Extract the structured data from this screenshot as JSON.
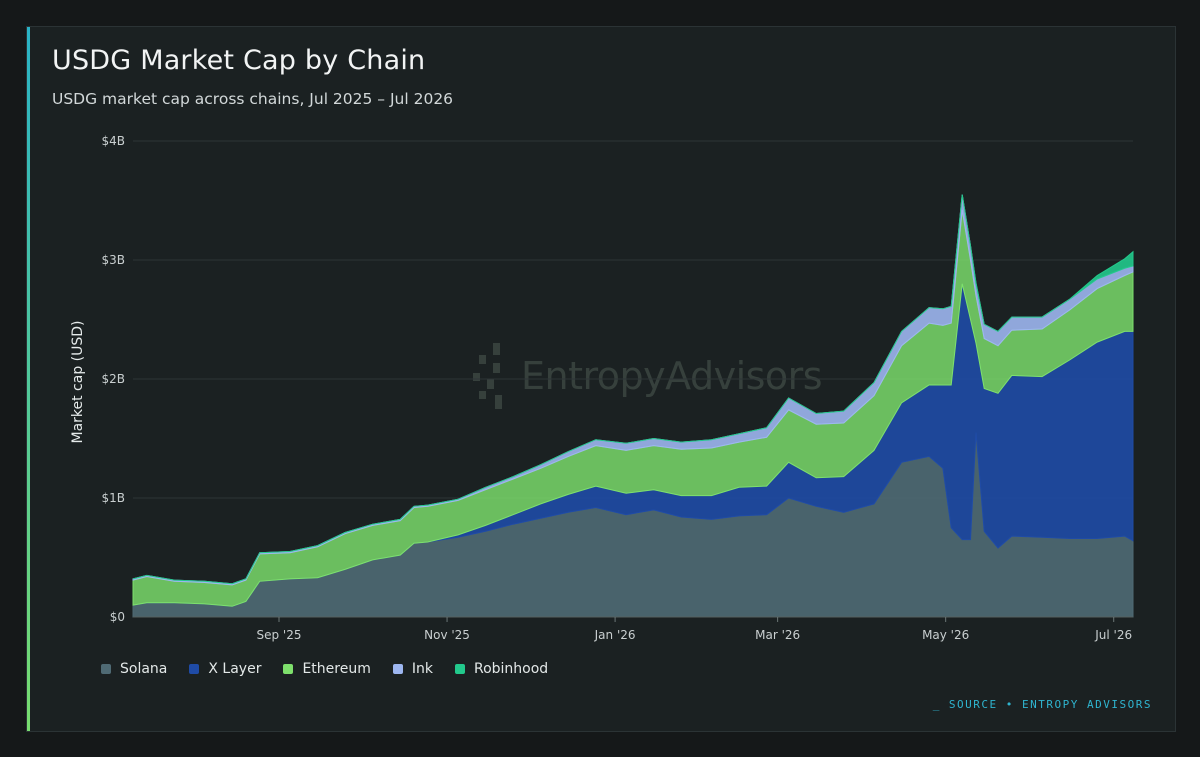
{
  "title": "USDG Market Cap by Chain",
  "subtitle": "USDG market cap across chains, Jul 2025 – Jul 2026",
  "watermark": "EntropyAdvisors",
  "source": "_ SOURCE • ENTROPY ADVISORS",
  "colors": {
    "Solana": "#4f6a74",
    "X Layer": "#1f4ba6",
    "Ethereum": "#7ee06c",
    "Ink": "#9db6f0",
    "Robinhood": "#22c98c"
  },
  "chart_data": {
    "type": "area",
    "stacked": true,
    "ylabel": "Market cap (USD)",
    "ylim": [
      0,
      4000000000
    ],
    "yticks": [
      "$0",
      "$1B",
      "$2B",
      "$3B",
      "$4B"
    ],
    "xticks": [
      "Sep '25",
      "Nov '25",
      "Jan '26",
      "Mar '26",
      "May '26",
      "Jul '26"
    ],
    "xtick_dates": [
      "2025-09-01",
      "2025-11-01",
      "2026-01-01",
      "2026-03-01",
      "2026-05-01",
      "2026-07-01"
    ],
    "x": [
      "2025-07-10",
      "2025-07-15",
      "2025-07-25",
      "2025-08-05",
      "2025-08-15",
      "2025-08-20",
      "2025-08-25",
      "2025-09-05",
      "2025-09-15",
      "2025-09-25",
      "2025-10-05",
      "2025-10-15",
      "2025-10-20",
      "2025-10-25",
      "2025-11-05",
      "2025-11-15",
      "2025-11-25",
      "2025-12-05",
      "2025-12-15",
      "2025-12-25",
      "2026-01-05",
      "2026-01-15",
      "2026-01-25",
      "2026-02-05",
      "2026-02-15",
      "2026-02-25",
      "2026-03-05",
      "2026-03-15",
      "2026-03-25",
      "2026-04-05",
      "2026-04-15",
      "2026-04-25",
      "2026-04-30",
      "2026-05-03",
      "2026-05-07",
      "2026-05-10",
      "2026-05-12",
      "2026-05-15",
      "2026-05-20",
      "2026-05-25",
      "2026-06-05",
      "2026-06-15",
      "2026-06-25",
      "2026-07-05",
      "2026-07-08"
    ],
    "series": [
      {
        "name": "Solana",
        "values": [
          0.1,
          0.12,
          0.12,
          0.11,
          0.09,
          0.13,
          0.3,
          0.32,
          0.33,
          0.4,
          0.48,
          0.52,
          0.62,
          0.63,
          0.67,
          0.72,
          0.78,
          0.83,
          0.88,
          0.92,
          0.86,
          0.9,
          0.84,
          0.82,
          0.85,
          0.86,
          1.0,
          0.93,
          0.88,
          0.95,
          1.3,
          1.35,
          1.25,
          0.75,
          0.65,
          0.65,
          1.55,
          0.72,
          0.58,
          0.68,
          0.67,
          0.66,
          0.66,
          0.68,
          0.64
        ]
      },
      {
        "name": "X Layer",
        "values": [
          0,
          0,
          0,
          0,
          0,
          0,
          0,
          0,
          0,
          0,
          0,
          0,
          0,
          0,
          0.02,
          0.05,
          0.08,
          0.12,
          0.15,
          0.18,
          0.18,
          0.17,
          0.18,
          0.2,
          0.24,
          0.24,
          0.3,
          0.24,
          0.3,
          0.45,
          0.5,
          0.6,
          0.7,
          1.2,
          2.15,
          1.85,
          0.75,
          1.2,
          1.3,
          1.35,
          1.35,
          1.5,
          1.65,
          1.72,
          1.76
        ]
      },
      {
        "name": "Ethereum",
        "values": [
          0.21,
          0.22,
          0.18,
          0.18,
          0.18,
          0.18,
          0.23,
          0.22,
          0.26,
          0.3,
          0.29,
          0.29,
          0.3,
          0.3,
          0.29,
          0.3,
          0.3,
          0.3,
          0.32,
          0.34,
          0.36,
          0.37,
          0.39,
          0.4,
          0.38,
          0.41,
          0.44,
          0.45,
          0.45,
          0.46,
          0.48,
          0.52,
          0.5,
          0.52,
          0.62,
          0.5,
          0.4,
          0.42,
          0.4,
          0.38,
          0.4,
          0.42,
          0.45,
          0.47,
          0.5
        ]
      },
      {
        "name": "Ink",
        "values": [
          0.01,
          0.01,
          0.01,
          0.01,
          0.01,
          0.01,
          0.01,
          0.01,
          0.01,
          0.01,
          0.01,
          0.01,
          0.01,
          0.01,
          0.01,
          0.02,
          0.02,
          0.03,
          0.04,
          0.05,
          0.06,
          0.06,
          0.06,
          0.07,
          0.07,
          0.08,
          0.1,
          0.09,
          0.1,
          0.11,
          0.12,
          0.13,
          0.14,
          0.14,
          0.13,
          0.12,
          0.1,
          0.12,
          0.12,
          0.11,
          0.1,
          0.09,
          0.08,
          0.06,
          0.05
        ]
      },
      {
        "name": "Robinhood",
        "values": [
          0,
          0,
          0,
          0,
          0,
          0,
          0,
          0,
          0,
          0,
          0,
          0,
          0,
          0,
          0,
          0,
          0,
          0,
          0,
          0,
          0,
          0,
          0,
          0,
          0,
          0,
          0,
          0,
          0,
          0,
          0,
          0,
          0,
          0,
          0,
          0,
          0.01,
          0,
          0,
          0,
          0,
          0,
          0.03,
          0.08,
          0.12
        ]
      }
    ],
    "value_unit": "billions USD",
    "legend": {
      "position": "bottom-left",
      "items": [
        "Solana",
        "X Layer",
        "Ethereum",
        "Ink",
        "Robinhood"
      ]
    },
    "grid": {
      "y": true,
      "x": false
    }
  }
}
